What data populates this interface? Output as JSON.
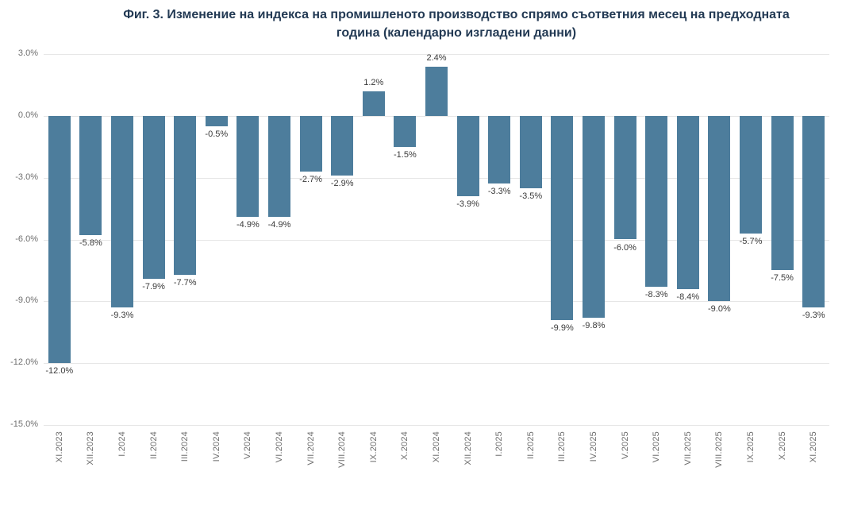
{
  "title": {
    "line1": "Фиг. 3. Изменение на индекса на промишленото производство спрямо съответния месец на предходната",
    "line2": "година (календарно изгладени данни)"
  },
  "colors": {
    "bar": "#4d7d9c",
    "title_text": "#233a54",
    "axis_text": "#6e6e6e",
    "value_text": "#3a3a3a",
    "gridline": "#e6e6e6",
    "background": "#ffffff"
  },
  "chart_data": {
    "type": "bar",
    "title": "Фиг. 3. Изменение на индекса на промишленото производство спрямо съответния месец на предходната година (календарно изгладени данни)",
    "categories": [
      "XI.2023",
      "XII.2023",
      "I.2024",
      "II.2024",
      "III.2024",
      "IV.2024",
      "V.2024",
      "VI.2024",
      "VII.2024",
      "VIII.2024",
      "IX.2024",
      "X.2024",
      "XI.2024",
      "XII.2024",
      "I.2025",
      "II.2025",
      "III.2025",
      "IV.2025",
      "V.2025",
      "VI.2025",
      "VII.2025",
      "VIII.2025",
      "IX.2025",
      "X.2025",
      "XI.2025"
    ],
    "values": [
      -12.0,
      -5.8,
      -9.3,
      -7.9,
      -7.7,
      -0.5,
      -4.9,
      -4.9,
      -2.7,
      -2.9,
      1.2,
      -1.5,
      2.4,
      -3.9,
      -3.3,
      -3.5,
      -9.9,
      -9.8,
      -6.0,
      -8.3,
      -8.4,
      -9.0,
      -5.7,
      -7.5,
      -9.3
    ],
    "value_labels": [
      "-12.0%",
      "-5.8%",
      "-9.3%",
      "-7.9%",
      "-7.7%",
      "-0.5%",
      "-4.9%",
      "-4.9%",
      "-2.7%",
      "-2.9%",
      "1.2%",
      "-1.5%",
      "2.4%",
      "-3.9%",
      "-3.3%",
      "-3.5%",
      "-9.9%",
      "-9.8%",
      "-6.0%",
      "-8.3%",
      "-8.4%",
      "-9.0%",
      "-5.7%",
      "-7.5%",
      "-9.3%"
    ],
    "yticks": [
      3,
      0,
      -3,
      -6,
      -9,
      -12,
      -15
    ],
    "ytick_labels": [
      "3.0%",
      "0.0%",
      "-3.0%",
      "-6.0%",
      "-9.0%",
      "-12.0%",
      "-15.0%"
    ],
    "ylim": [
      -15,
      3
    ],
    "xlabel": "",
    "ylabel": "",
    "grid": true,
    "legend": false
  }
}
